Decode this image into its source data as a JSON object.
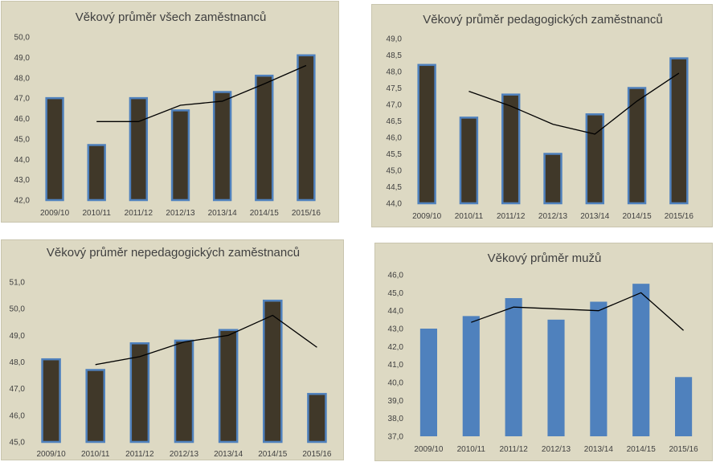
{
  "chart_data": [
    {
      "type": "bar",
      "title": "Věkový průměr všech zaměstnanců",
      "categories": [
        "2009/10",
        "2010/11",
        "2011/12",
        "2012/13",
        "2013/14",
        "2014/15",
        "2015/16"
      ],
      "values": [
        47.0,
        44.7,
        47.0,
        46.4,
        47.3,
        48.1,
        49.1
      ],
      "trend_values": [
        null,
        45.85,
        45.85,
        46.65,
        46.85,
        47.7,
        48.6
      ],
      "ylim": [
        42.0,
        50.0
      ],
      "yticks": [
        42.0,
        43.0,
        44.0,
        45.0,
        46.0,
        47.0,
        48.0,
        49.0,
        50.0
      ],
      "ytick_labels": [
        "42,0",
        "43,0",
        "44,0",
        "45,0",
        "46,0",
        "47,0",
        "48,0",
        "49,0",
        "50,0"
      ],
      "xlabel": "",
      "ylabel": "",
      "grid": false,
      "legend": "none",
      "bar_color": "#403829",
      "bar_border": "#4f81bd",
      "line_color": "#000000"
    },
    {
      "type": "bar",
      "title": "Věkový průměr pedagogických zaměstnanců",
      "categories": [
        "2009/10",
        "2010/11",
        "2011/12",
        "2012/13",
        "2013/14",
        "2014/15",
        "2015/16"
      ],
      "values": [
        48.2,
        46.6,
        47.3,
        45.5,
        46.7,
        47.5,
        48.4
      ],
      "trend_values": [
        null,
        47.4,
        46.95,
        46.4,
        46.1,
        47.1,
        47.95
      ],
      "ylim": [
        44.0,
        49.0
      ],
      "yticks": [
        44.0,
        44.5,
        45.0,
        45.5,
        46.0,
        46.5,
        47.0,
        47.5,
        48.0,
        48.5,
        49.0
      ],
      "ytick_labels": [
        "44,0",
        "44,5",
        "45,0",
        "45,5",
        "46,0",
        "46,5",
        "47,0",
        "47,5",
        "48,0",
        "48,5",
        "49,0"
      ],
      "xlabel": "",
      "ylabel": "",
      "grid": false,
      "legend": "none",
      "bar_color": "#403829",
      "bar_border": "#4f81bd",
      "line_color": "#000000"
    },
    {
      "type": "bar",
      "title": "Věkový průměr nepedagogických zaměstnanců",
      "categories": [
        "2009/10",
        "2010/11",
        "2011/12",
        "2012/13",
        "2013/14",
        "2014/15",
        "2015/16"
      ],
      "values": [
        48.1,
        47.7,
        48.7,
        48.8,
        49.2,
        50.3,
        46.8
      ],
      "trend_values": [
        null,
        47.9,
        48.2,
        48.75,
        49.0,
        49.75,
        48.55
      ],
      "ylim": [
        45.0,
        51.0
      ],
      "yticks": [
        45.0,
        46.0,
        47.0,
        48.0,
        49.0,
        50.0,
        51.0
      ],
      "ytick_labels": [
        "45,0",
        "46,0",
        "47,0",
        "48,0",
        "49,0",
        "50,0",
        "51,0"
      ],
      "xlabel": "",
      "ylabel": "",
      "grid": false,
      "legend": "none",
      "bar_color": "#403829",
      "bar_border": "#4f81bd",
      "line_color": "#000000"
    },
    {
      "type": "bar",
      "title": "Věkový průměr mužů",
      "categories": [
        "2009/10",
        "2010/11",
        "2011/12",
        "2012/13",
        "2013/14",
        "2014/15",
        "2015/16"
      ],
      "values": [
        43.0,
        43.7,
        44.7,
        43.5,
        44.5,
        45.5,
        40.3
      ],
      "trend_values": [
        null,
        43.35,
        44.2,
        44.1,
        44.0,
        45.0,
        42.9
      ],
      "ylim": [
        37.0,
        46.0
      ],
      "yticks": [
        37.0,
        38.0,
        39.0,
        40.0,
        41.0,
        42.0,
        43.0,
        44.0,
        45.0,
        46.0
      ],
      "ytick_labels": [
        "37,0",
        "38,0",
        "39,0",
        "40,0",
        "41,0",
        "42,0",
        "43,0",
        "44,0",
        "45,0",
        "46,0"
      ],
      "xlabel": "",
      "ylabel": "",
      "grid": false,
      "legend": "none",
      "bar_color": "#4f81bd",
      "bar_border": "#4f81bd",
      "line_color": "#000000"
    }
  ]
}
